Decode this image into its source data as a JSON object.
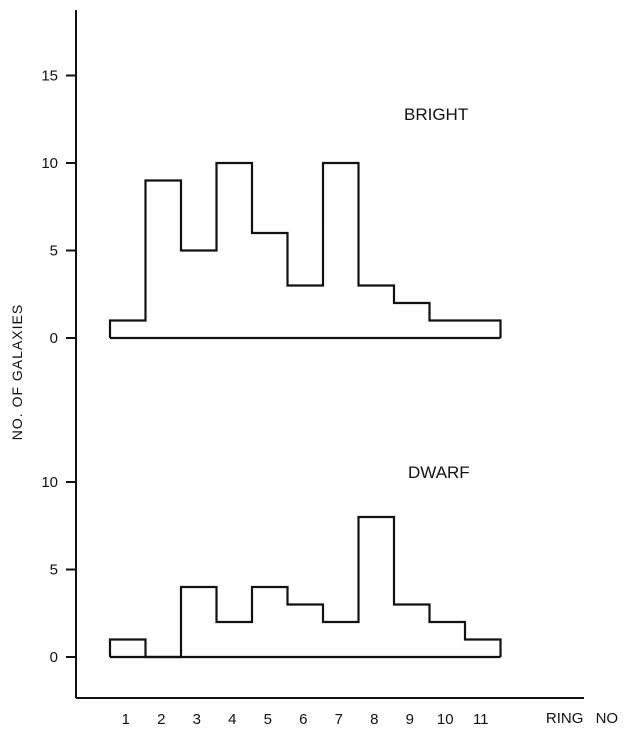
{
  "chart_data": [
    {
      "type": "histogram",
      "title": "BRIGHT",
      "ylabel": "NO. OF GALAXIES",
      "xlabel": "RING NO",
      "ylim": [
        0,
        18
      ],
      "yticks": [
        0,
        5,
        10,
        15
      ],
      "categories": [
        "1",
        "2",
        "3",
        "4",
        "5",
        "6",
        "7",
        "8",
        "9",
        "10",
        "11"
      ],
      "values": [
        1,
        9,
        5,
        10,
        6,
        3,
        10,
        3,
        2,
        1,
        1
      ]
    },
    {
      "type": "histogram",
      "title": "DWARF",
      "ylabel": "NO. OF GALAXIES",
      "xlabel": "RING NO",
      "ylim": [
        0,
        11
      ],
      "yticks": [
        0,
        5,
        10
      ],
      "categories": [
        "1",
        "2",
        "3",
        "4",
        "5",
        "6",
        "7",
        "8",
        "9",
        "10",
        "11"
      ],
      "values": [
        1,
        0,
        4,
        2,
        4,
        3,
        2,
        8,
        3,
        2,
        1
      ]
    }
  ],
  "ylabel_text": "NO. OF GALAXIES",
  "xlabel_text": "RING NO"
}
